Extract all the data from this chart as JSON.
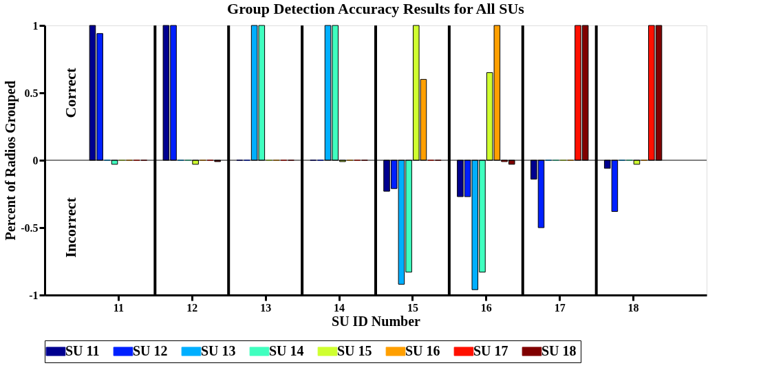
{
  "chart_data": {
    "type": "bar",
    "title": "Group Detection Accuracy Results for All SUs",
    "xlabel": "SU ID Number",
    "ylabel": "Percent of Radios Grouped",
    "x": [
      11,
      12,
      13,
      14,
      15,
      16,
      17,
      18
    ],
    "xlim": [
      10,
      19
    ],
    "xticks": [
      11,
      12,
      13,
      14,
      15,
      16,
      17,
      18
    ],
    "ylim": [
      -1,
      1
    ],
    "yticks": [
      -1,
      -0.5,
      0,
      0.5,
      1
    ],
    "series": [
      {
        "name": "SU 11",
        "color": "#00008f",
        "values": [
          1,
          1,
          0,
          0,
          -0.23,
          -0.27,
          -0.14,
          -0.06
        ]
      },
      {
        "name": "SU 12",
        "color": "#0020ff",
        "values": [
          0.94,
          1,
          0,
          0,
          -0.21,
          -0.27,
          -0.5,
          -0.38
        ]
      },
      {
        "name": "SU 13",
        "color": "#00afff",
        "values": [
          0,
          0,
          1,
          1,
          -0.92,
          -0.96,
          0,
          0
        ]
      },
      {
        "name": "SU 14",
        "color": "#40ffbf",
        "values": [
          -0.03,
          0,
          1,
          1,
          -0.83,
          -0.83,
          0,
          0
        ]
      },
      {
        "name": "SU 15",
        "color": "#cfff30",
        "values": [
          0,
          -0.03,
          0,
          -0.01,
          1,
          0.65,
          0,
          -0.03
        ]
      },
      {
        "name": "SU 16",
        "color": "#ff9f00",
        "values": [
          0,
          0,
          0,
          0,
          0.6,
          1,
          0,
          0
        ]
      },
      {
        "name": "SU 17",
        "color": "#ff1000",
        "values": [
          0,
          0,
          0,
          0,
          0,
          -0.01,
          1,
          1
        ]
      },
      {
        "name": "SU 18",
        "color": "#800000",
        "values": [
          0,
          -0.01,
          0,
          0,
          0,
          -0.03,
          1,
          1
        ]
      }
    ],
    "ref_lines": [
      {
        "axis": "y",
        "value": 0,
        "color": "#000000"
      },
      {
        "axis": "x",
        "value": 11.5,
        "color": "#000000"
      },
      {
        "axis": "x",
        "value": 12.5,
        "color": "#000000"
      },
      {
        "axis": "x",
        "value": 13.5,
        "color": "#000000"
      },
      {
        "axis": "x",
        "value": 14.5,
        "color": "#000000"
      },
      {
        "axis": "x",
        "value": 15.5,
        "color": "#000000"
      },
      {
        "axis": "x",
        "value": 16.5,
        "color": "#000000"
      },
      {
        "axis": "x",
        "value": 17.5,
        "color": "#000000"
      }
    ],
    "annotations": [
      "Correct",
      "Incorrect"
    ],
    "legend": "bottom",
    "grid": false
  }
}
